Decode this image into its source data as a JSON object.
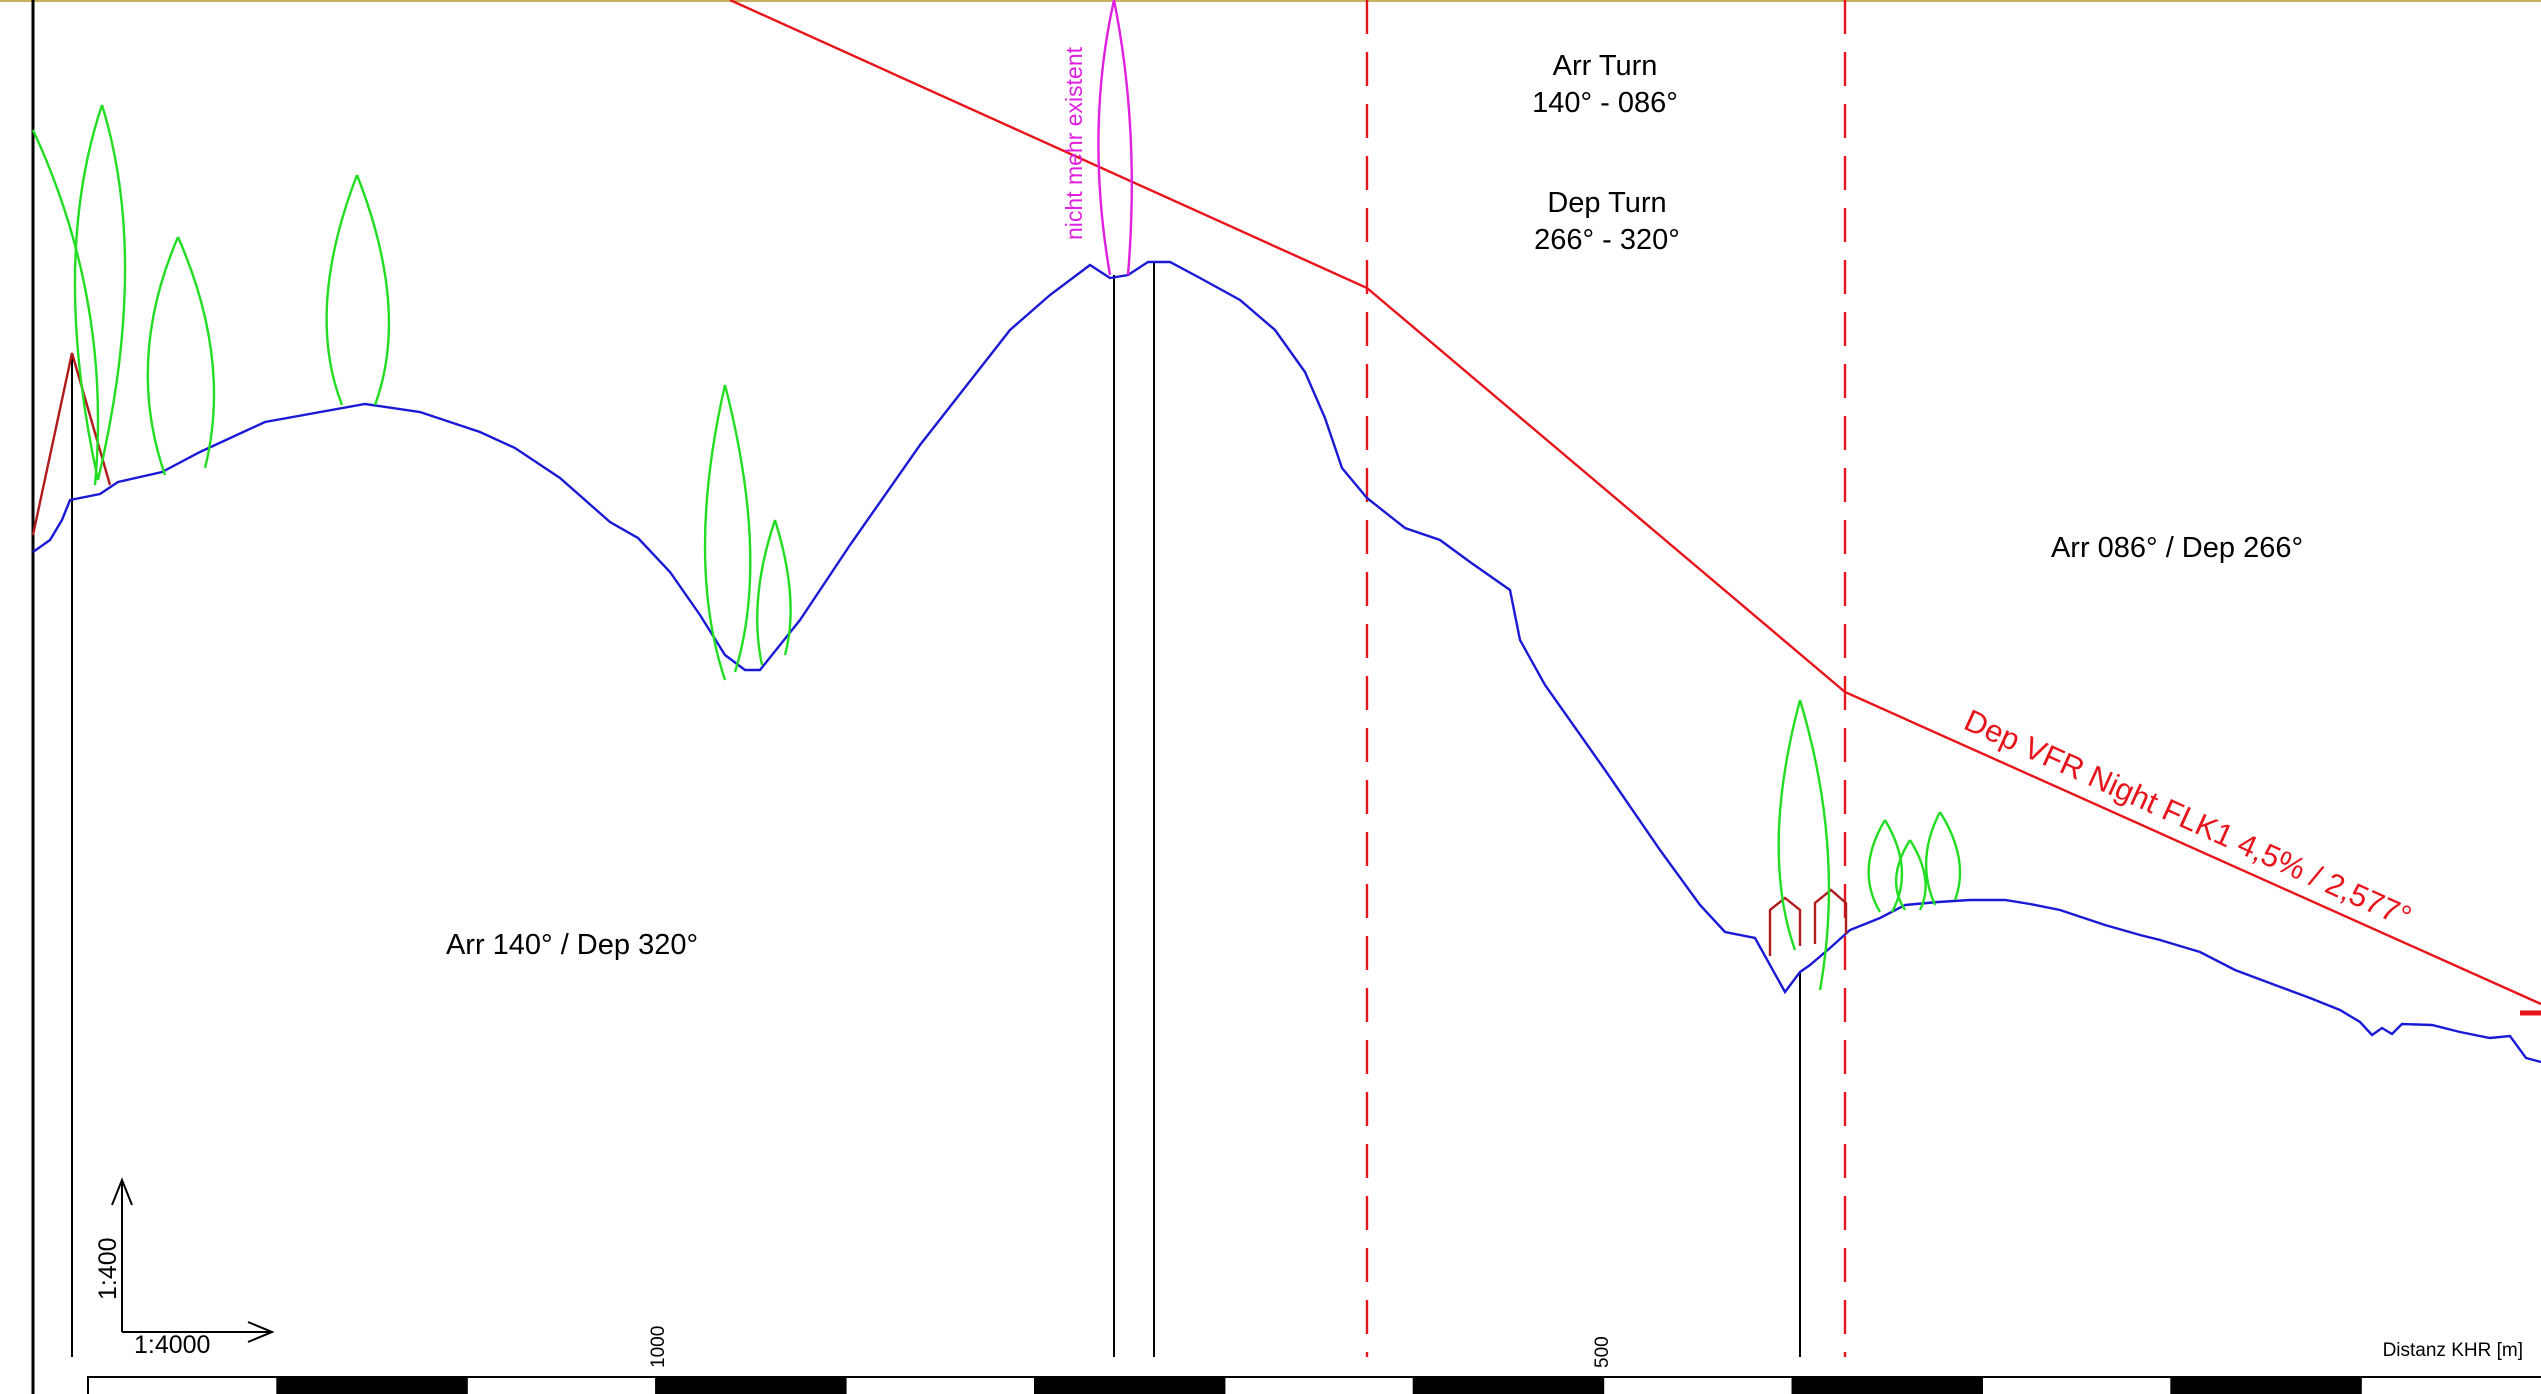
{
  "labels": {
    "arr_turn": "Arr Turn",
    "arr_turn_range": "140° - 086°",
    "dep_turn": "Dep Turn",
    "dep_turn_range": "266° - 320°",
    "left_zone": "Arr 140° / Dep 320°",
    "right_zone": "Arr 086° / Dep 266°",
    "departure_line": "Dep VFR Night FLK1 4,5% / 2,577°",
    "removed_note": "nicht mehr existent",
    "scale_vertical": "1:400",
    "scale_horizontal": "1:4000",
    "distance_axis": "Distanz KHR [m]",
    "tick_1000": "1000",
    "tick_500": "500"
  },
  "colors": {
    "terrain": "#1a1ad6",
    "obstacle_surface": "#e8141b",
    "trees": "#22dd22",
    "buildings": "#b01c1c",
    "removed_obstacle": "#e020e0",
    "poles": "#000000"
  },
  "icons": {
    "scale_arrows": "axis-arrows-icon"
  }
}
